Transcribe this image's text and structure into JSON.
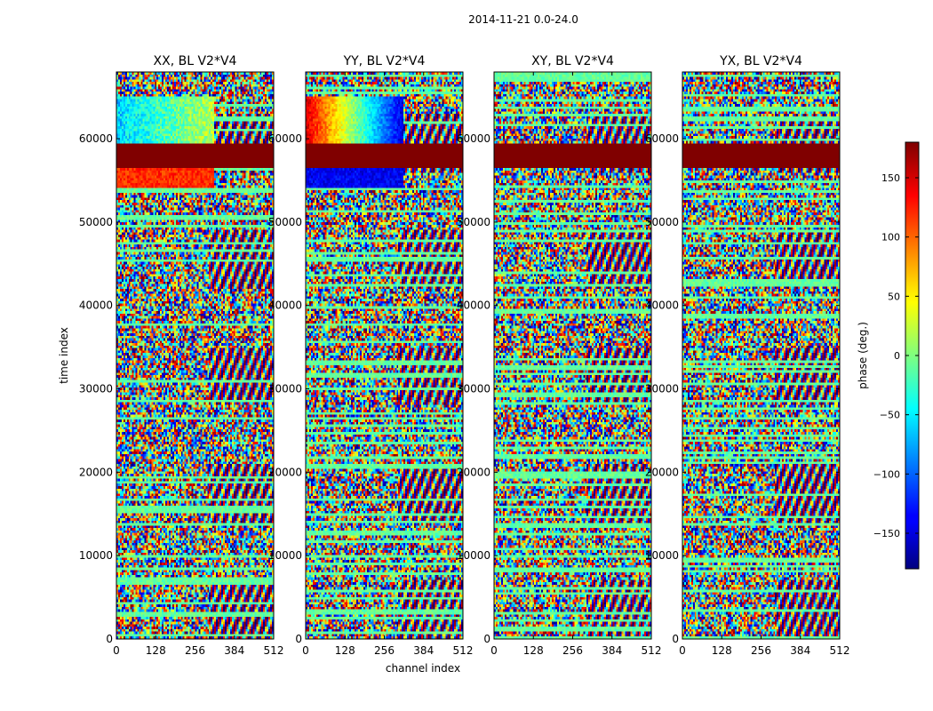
{
  "chart_data": {
    "type": "heatmap",
    "suptitle": "2014-11-21 0.0-24.0",
    "xlabel": "channel index",
    "ylabel": "time index",
    "xlim": [
      0,
      512
    ],
    "ylim": [
      0,
      68000
    ],
    "x_ticks": [
      0,
      128,
      256,
      384,
      512
    ],
    "y_ticks": [
      0,
      10000,
      20000,
      30000,
      40000,
      50000,
      60000
    ],
    "panels": [
      {
        "title": "XX, BL V2*V4",
        "polarization": "XX",
        "coherent_phase": -60
      },
      {
        "title": "YY, BL V2*V4",
        "polarization": "YY",
        "coherent_phase": -150
      },
      {
        "title": "XY, BL V2*V4",
        "polarization": "XY",
        "coherent_phase": null
      },
      {
        "title": "YX, BL V2*V4",
        "polarization": "YX",
        "coherent_phase": null
      }
    ],
    "colorbar": {
      "label": "phase (deg.)",
      "range": [
        -180,
        180
      ],
      "ticks": [
        -150,
        -100,
        -50,
        0,
        50,
        100,
        150
      ],
      "colormap": "jet"
    },
    "flagged_band_time_range": [
      56500,
      59300
    ],
    "flag_value": 180
  }
}
